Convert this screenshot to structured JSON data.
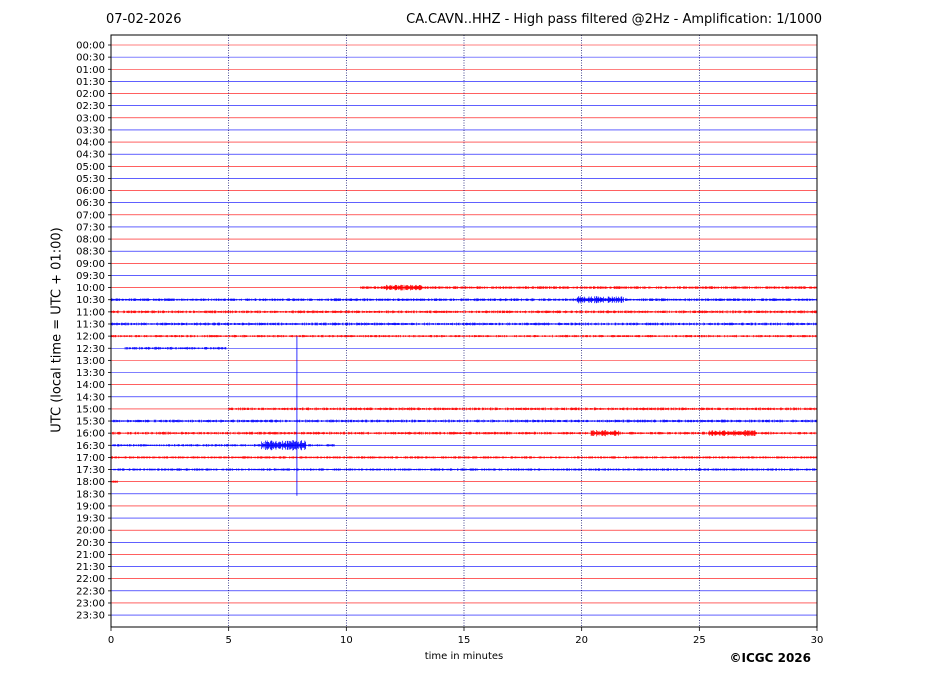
{
  "header": {
    "date": "07-02-2026",
    "title": "CA.CAVN..HHZ - High pass filtered @2Hz - Amplification: 1/1000"
  },
  "footer": {
    "copyright": "©ICGC 2026"
  },
  "chart_data": {
    "type": "line",
    "xlabel": "time in minutes",
    "ylabel": "UTC (local time = UTC + 01:00)",
    "xlim": [
      0,
      30
    ],
    "x_ticks": [
      "0",
      "5",
      "10",
      "15",
      "20",
      "25",
      "30"
    ],
    "x_gridlines": [
      5,
      10,
      15,
      20,
      25
    ],
    "trace_colors": [
      "#ff0000",
      "#0000ff"
    ],
    "rows": [
      "00:00",
      "00:30",
      "01:00",
      "01:30",
      "02:00",
      "02:30",
      "03:00",
      "03:30",
      "04:00",
      "04:30",
      "05:00",
      "05:30",
      "06:00",
      "06:30",
      "07:00",
      "07:30",
      "08:00",
      "08:30",
      "09:00",
      "09:30",
      "10:00",
      "10:30",
      "11:00",
      "11:30",
      "12:00",
      "12:30",
      "13:00",
      "13:30",
      "14:00",
      "14:30",
      "15:00",
      "15:30",
      "16:00",
      "16:30",
      "17:00",
      "17:30",
      "18:00",
      "18:30",
      "19:00",
      "19:30",
      "20:00",
      "20:30",
      "21:00",
      "21:30",
      "22:00",
      "22:30",
      "23:00",
      "23:30"
    ],
    "activity_segments": [
      {
        "row": "10:00",
        "from": 10.6,
        "to": 30,
        "amp": 0.35
      },
      {
        "row": "10:00",
        "from": 11.6,
        "to": 13.2,
        "amp": 0.7
      },
      {
        "row": "10:30",
        "from": 0,
        "to": 30,
        "amp": 0.35
      },
      {
        "row": "10:30",
        "from": 19.8,
        "to": 21.8,
        "amp": 0.9
      },
      {
        "row": "11:00",
        "from": 0,
        "to": 30,
        "amp": 0.35
      },
      {
        "row": "11:30",
        "from": 0,
        "to": 30,
        "amp": 0.35
      },
      {
        "row": "12:00",
        "from": 0,
        "to": 30,
        "amp": 0.3
      },
      {
        "row": "12:30",
        "from": 0.6,
        "to": 4.9,
        "amp": 0.35
      },
      {
        "row": "15:00",
        "from": 5,
        "to": 30,
        "amp": 0.35
      },
      {
        "row": "15:30",
        "from": 0,
        "to": 30,
        "amp": 0.35
      },
      {
        "row": "16:00",
        "from": 0,
        "to": 30,
        "amp": 0.35
      },
      {
        "row": "16:00",
        "from": 20.4,
        "to": 21.6,
        "amp": 0.8
      },
      {
        "row": "16:00",
        "from": 25.4,
        "to": 27.4,
        "amp": 0.8
      },
      {
        "row": "16:30",
        "from": 0,
        "to": 9.5,
        "amp": 0.3
      },
      {
        "row": "16:30",
        "from": 6.4,
        "to": 8.3,
        "amp": 1.3
      },
      {
        "row": "17:00",
        "from": 0,
        "to": 30,
        "amp": 0.3
      },
      {
        "row": "17:30",
        "from": 0,
        "to": 30,
        "amp": 0.3
      },
      {
        "row": "18:00",
        "from": 0,
        "to": 0.3,
        "amp": 0.3
      }
    ],
    "spike": {
      "x": 7.9,
      "from_row": "12:30",
      "to_row": "18:30"
    }
  }
}
